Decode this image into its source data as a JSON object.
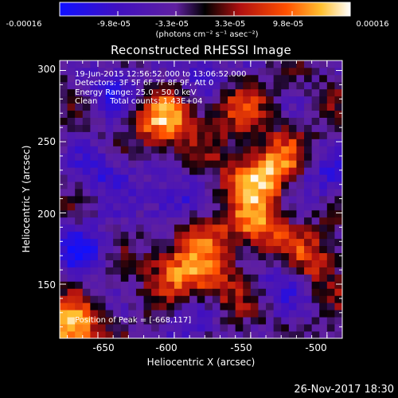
{
  "colorbar": {
    "tick_labels": [
      "-0.00016",
      "-9.8e-05",
      "-3.3e-05",
      "3.3e-05",
      "9.8e-05",
      "0.00016"
    ],
    "units": "(photons cm⁻² s⁻¹ asec⁻²)",
    "colors": [
      "#1010ff",
      "#4010c0",
      "#7020a0",
      "#000000",
      "#b01010",
      "#ff5000",
      "#ffc030",
      "#ffffff"
    ]
  },
  "chart_data": {
    "type": "heatmap",
    "title": "Reconstructed RHESSI Image",
    "xlabel": "Heliocentric X (arcsec)",
    "ylabel": "Heliocentric Y (arcsec)",
    "xlim": [
      -675,
      -490
    ],
    "ylim": [
      112,
      307
    ],
    "x_ticks": [
      "-650",
      "-600",
      "-550",
      "-500"
    ],
    "y_ticks": [
      "150",
      "200",
      "250",
      "300"
    ],
    "x_tick_values": [
      -650,
      -600,
      -550,
      -500
    ],
    "y_tick_values": [
      150,
      200,
      250,
      300
    ],
    "colorbar_range": [
      -0.00016,
      0.00016
    ],
    "annotations": {
      "line1": "19-Jun-2015 12:56:52.000 to 13:06:52.000",
      "line2": "Detectors: 3F 5F 6F 7F 8F 9F, Att 0",
      "line3": "Energy Range: 25.0 - 50.0 keV",
      "line4": "Clean     Total counts: 1.43E+04",
      "peak": "Position of Peak = [-668,117]"
    },
    "peak_position": [
      -668,
      117
    ],
    "bright_regions": [
      {
        "x": -668,
        "y": 117,
        "level": 1.0
      },
      {
        "x": -607,
        "y": 265,
        "level": 0.92
      },
      {
        "x": -547,
        "y": 225,
        "level": 0.85
      },
      {
        "x": -545,
        "y": 190,
        "level": 0.72
      },
      {
        "x": -585,
        "y": 190,
        "level": 0.6
      },
      {
        "x": -598,
        "y": 160,
        "level": 0.7
      },
      {
        "x": -512,
        "y": 165,
        "level": 0.82
      },
      {
        "x": -525,
        "y": 237,
        "level": 0.55
      },
      {
        "x": -575,
        "y": 148,
        "level": 0.55
      },
      {
        "x": -560,
        "y": 275,
        "level": 0.5
      }
    ],
    "dim_regions": [
      {
        "x": -600,
        "y": 205,
        "level": -0.75
      },
      {
        "x": -525,
        "y": 155,
        "level": -0.7
      },
      {
        "x": -660,
        "y": 175,
        "level": -0.65
      },
      {
        "x": -640,
        "y": 285,
        "level": -0.55
      },
      {
        "x": -645,
        "y": 230,
        "level": -0.55
      },
      {
        "x": -505,
        "y": 225,
        "level": -0.6
      },
      {
        "x": -580,
        "y": 298,
        "level": -0.5
      },
      {
        "x": -590,
        "y": 125,
        "level": -0.5
      }
    ]
  },
  "footer": {
    "date": "26-Nov-2017 18:30"
  }
}
